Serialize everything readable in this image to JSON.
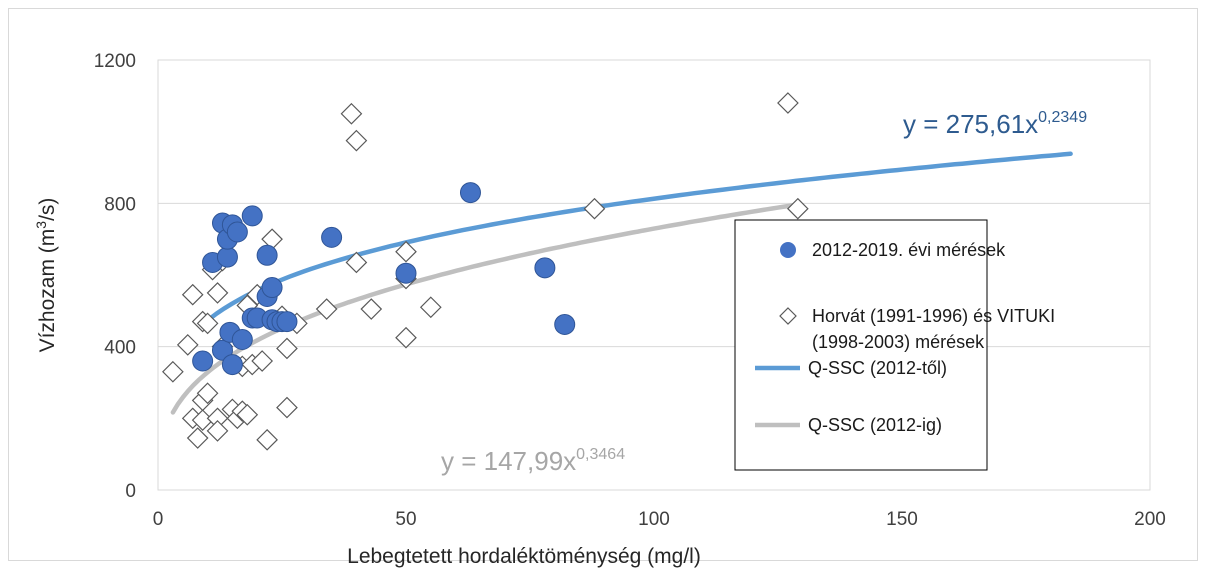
{
  "chart_data": {
    "type": "scatter",
    "xlabel": "Lebegtetett hordaléktöménység (mg/l)",
    "ylabel_main": "Vízhozam (m",
    "ylabel_sup": "3",
    "ylabel_tail": "/s)",
    "xlim": [
      0,
      200
    ],
    "ylim": [
      0,
      1200
    ],
    "x_ticks": [
      "0",
      "50",
      "100",
      "150",
      "200"
    ],
    "y_ticks": [
      "0",
      "400",
      "800",
      "1200"
    ],
    "grid": "horizontal",
    "legend_placement": "right",
    "series": [
      {
        "name": "2012-2019. évi mérések",
        "marker": "circle",
        "color": "#4472c4",
        "points": [
          [
            9,
            360
          ],
          [
            11,
            635
          ],
          [
            13,
            745
          ],
          [
            13,
            390
          ],
          [
            14,
            650
          ],
          [
            14,
            700
          ],
          [
            14.5,
            440
          ],
          [
            15,
            740
          ],
          [
            15,
            350
          ],
          [
            16,
            720
          ],
          [
            17,
            420
          ],
          [
            19,
            765
          ],
          [
            19,
            480
          ],
          [
            20,
            480
          ],
          [
            22,
            540
          ],
          [
            22,
            655
          ],
          [
            23,
            565
          ],
          [
            23,
            475
          ],
          [
            24,
            470
          ],
          [
            25,
            470
          ],
          [
            26,
            470
          ],
          [
            35,
            705
          ],
          [
            50,
            605
          ],
          [
            63,
            830
          ],
          [
            78,
            620
          ],
          [
            82,
            462
          ]
        ]
      },
      {
        "name": "Horvát (1991-1996) és VITUKI (1998-2003) mérések",
        "legend_line1": "Horvát (1991-1996) és VITUKI",
        "legend_line2": "(1998-2003) mérések",
        "marker": "diamond",
        "color": "#595959",
        "points": [
          [
            3,
            330
          ],
          [
            6,
            405
          ],
          [
            7,
            200
          ],
          [
            7,
            545
          ],
          [
            8,
            145
          ],
          [
            9,
            195
          ],
          [
            9,
            250
          ],
          [
            9,
            470
          ],
          [
            10,
            270
          ],
          [
            10,
            465
          ],
          [
            11,
            615
          ],
          [
            12,
            550
          ],
          [
            12,
            200
          ],
          [
            12,
            165
          ],
          [
            13,
            640
          ],
          [
            13,
            400
          ],
          [
            15,
            225
          ],
          [
            16,
            200
          ],
          [
            17,
            345
          ],
          [
            17,
            220
          ],
          [
            18,
            210
          ],
          [
            18,
            515
          ],
          [
            19,
            350
          ],
          [
            20,
            545
          ],
          [
            21,
            360
          ],
          [
            22,
            140
          ],
          [
            23,
            700
          ],
          [
            24,
            470
          ],
          [
            25,
            485
          ],
          [
            26,
            395
          ],
          [
            26,
            230
          ],
          [
            28,
            465
          ],
          [
            34,
            505
          ],
          [
            39,
            1050
          ],
          [
            40,
            635
          ],
          [
            40,
            975
          ],
          [
            43,
            505
          ],
          [
            50,
            425
          ],
          [
            50,
            590
          ],
          [
            50,
            665
          ],
          [
            55,
            510
          ],
          [
            88,
            785
          ],
          [
            127,
            1080
          ],
          [
            129,
            785
          ]
        ]
      }
    ],
    "trendlines": [
      {
        "name": "Q-SSC (2012-től)",
        "color": "#5b9bd5",
        "coef": 275.61,
        "exp": 0.2349,
        "x_range": [
          9,
          184
        ],
        "equation_base": "y = 275,61x",
        "equation_exp": "0,2349",
        "equation_color": "#2e5b8f"
      },
      {
        "name": "Q-SSC (2012-ig)",
        "color": "#bfbfbf",
        "coef": 147.99,
        "exp": 0.3464,
        "x_range": [
          3,
          128
        ],
        "equation_base": "y = 147,99x",
        "equation_exp": "0,3464",
        "equation_color": "#a6a6a6"
      }
    ]
  }
}
